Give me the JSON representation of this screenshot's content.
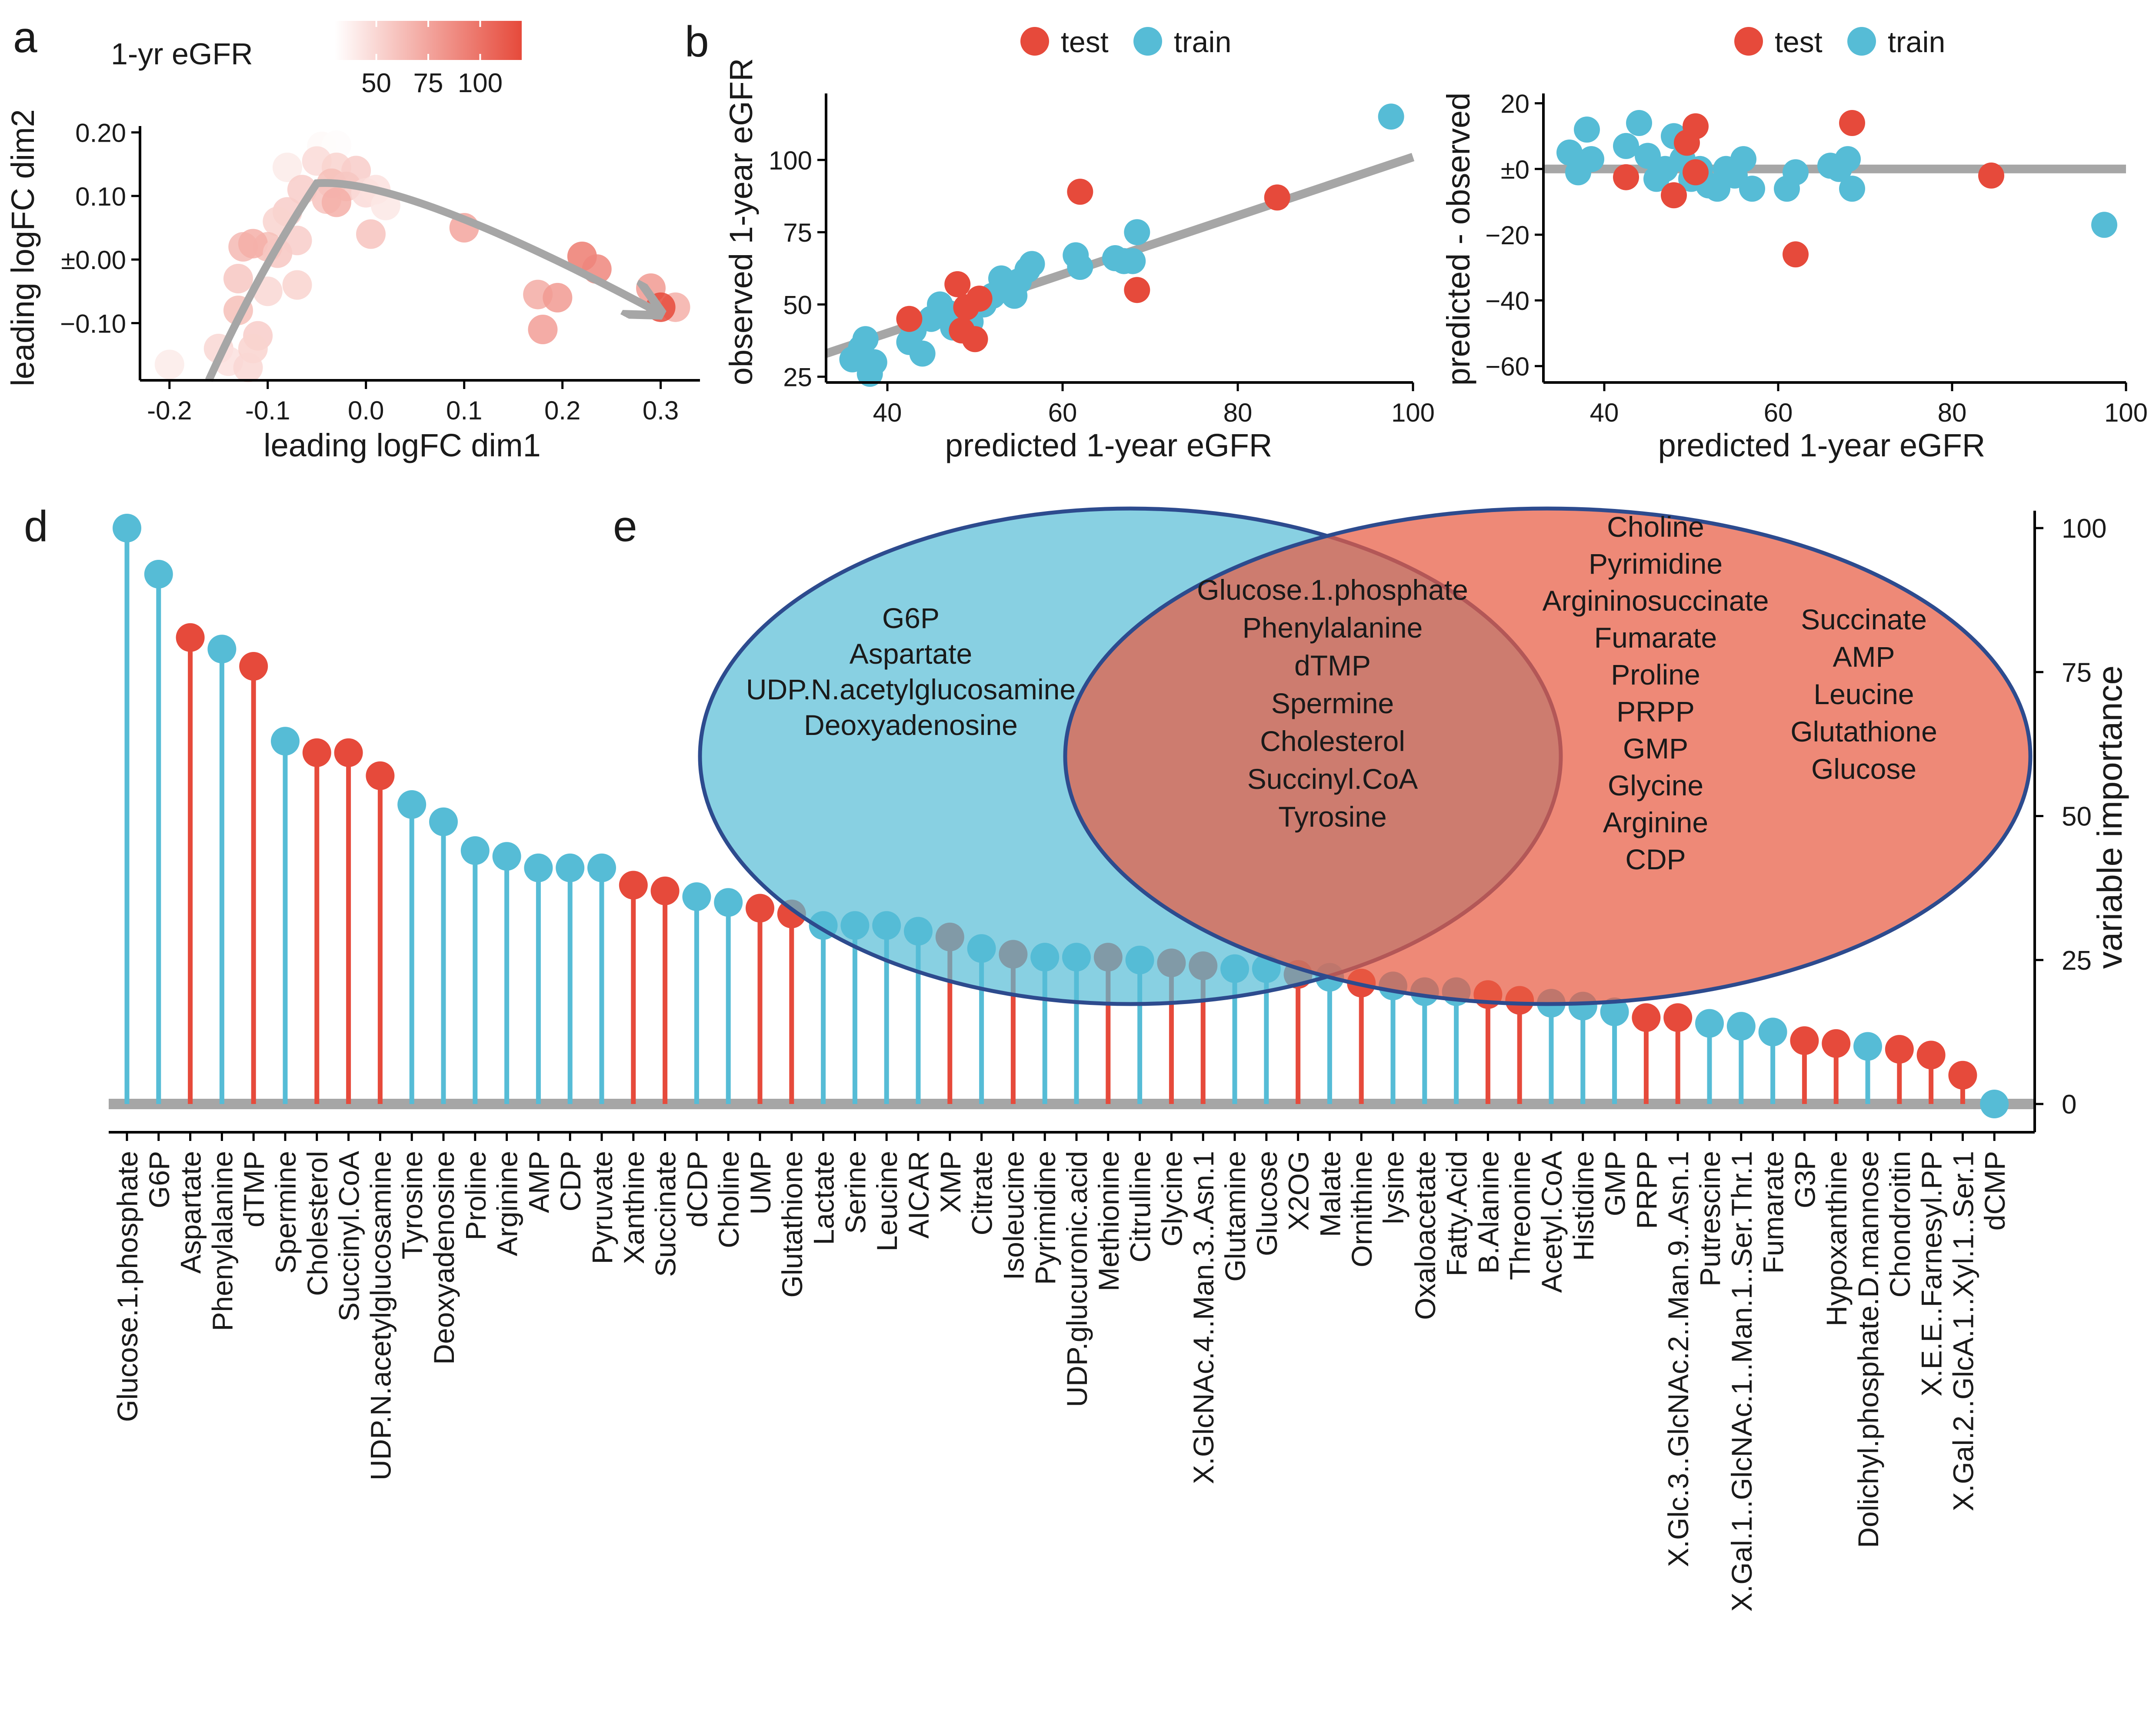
{
  "colors": {
    "test": "#E64A3B",
    "train": "#56BCD6",
    "line": "#A6A6A6",
    "axis": "#000000",
    "venn_left": "#56BCD6",
    "venn_right": "#EE6A50",
    "venn_edge": "#2D4B8E"
  },
  "panel_labels": {
    "a": "a",
    "b": "b",
    "d": "d",
    "e": "e"
  },
  "chart_data": [
    {
      "id": "panel-a",
      "type": "scatter",
      "xlabel": "leading logFC dim1",
      "ylabel": "leading logFC dim2",
      "xlim": [
        -0.23,
        0.34
      ],
      "ylim": [
        -0.19,
        0.21
      ],
      "xticks": [
        -0.2,
        -0.1,
        0.0,
        0.1,
        0.2,
        0.3
      ],
      "xtick_labels": [
        "-0.2",
        "-0.1",
        "0.0",
        "0.1",
        "0.2",
        "0.3"
      ],
      "yticks": [
        -0.1,
        0.0,
        0.1,
        0.2
      ],
      "ytick_labels": [
        "−0.10",
        "±0.00",
        "0.10",
        "0.20"
      ],
      "legend": {
        "title": "1-yr eGFR",
        "ticks": [
          "50",
          "75",
          "100"
        ],
        "range": [
          30,
          120
        ]
      },
      "points": [
        {
          "x": -0.045,
          "y": 0.178,
          "v": 33
        },
        {
          "x": -0.03,
          "y": 0.18,
          "v": 32
        },
        {
          "x": -0.05,
          "y": 0.155,
          "v": 48
        },
        {
          "x": -0.08,
          "y": 0.145,
          "v": 40
        },
        {
          "x": -0.03,
          "y": 0.145,
          "v": 52
        },
        {
          "x": -0.01,
          "y": 0.14,
          "v": 55
        },
        {
          "x": -0.035,
          "y": 0.12,
          "v": 62
        },
        {
          "x": -0.02,
          "y": 0.115,
          "v": 58
        },
        {
          "x": -0.065,
          "y": 0.11,
          "v": 55
        },
        {
          "x": -0.04,
          "y": 0.095,
          "v": 60
        },
        {
          "x": -0.03,
          "y": 0.09,
          "v": 70
        },
        {
          "x": 0.0,
          "y": 0.105,
          "v": 48
        },
        {
          "x": 0.01,
          "y": 0.11,
          "v": 45
        },
        {
          "x": 0.02,
          "y": 0.085,
          "v": 42
        },
        {
          "x": -0.08,
          "y": 0.075,
          "v": 55
        },
        {
          "x": -0.09,
          "y": 0.06,
          "v": 52
        },
        {
          "x": -0.1,
          "y": 0.02,
          "v": 62
        },
        {
          "x": -0.125,
          "y": 0.02,
          "v": 65
        },
        {
          "x": -0.115,
          "y": 0.025,
          "v": 70
        },
        {
          "x": -0.09,
          "y": 0.01,
          "v": 58
        },
        {
          "x": -0.07,
          "y": 0.03,
          "v": 55
        },
        {
          "x": -0.13,
          "y": -0.03,
          "v": 58
        },
        {
          "x": -0.1,
          "y": -0.05,
          "v": 50
        },
        {
          "x": -0.07,
          "y": -0.04,
          "v": 52
        },
        {
          "x": 0.005,
          "y": 0.04,
          "v": 60
        },
        {
          "x": 0.1,
          "y": 0.05,
          "v": 75
        },
        {
          "x": -0.13,
          "y": -0.08,
          "v": 62
        },
        {
          "x": -0.11,
          "y": -0.12,
          "v": 55
        },
        {
          "x": -0.15,
          "y": -0.14,
          "v": 50
        },
        {
          "x": -0.14,
          "y": -0.16,
          "v": 45
        },
        {
          "x": -0.115,
          "y": -0.14,
          "v": 52
        },
        {
          "x": -0.12,
          "y": -0.17,
          "v": 50
        },
        {
          "x": -0.2,
          "y": -0.165,
          "v": 40
        },
        {
          "x": 0.22,
          "y": 0.005,
          "v": 95
        },
        {
          "x": 0.235,
          "y": -0.015,
          "v": 90
        },
        {
          "x": 0.175,
          "y": -0.055,
          "v": 72
        },
        {
          "x": 0.195,
          "y": -0.06,
          "v": 80
        },
        {
          "x": 0.18,
          "y": -0.11,
          "v": 78
        },
        {
          "x": 0.29,
          "y": -0.045,
          "v": 80
        },
        {
          "x": 0.315,
          "y": -0.075,
          "v": 70
        },
        {
          "x": 0.3,
          "y": -0.075,
          "v": 122
        }
      ],
      "trend": [
        [
          -0.16,
          -0.19
        ],
        [
          -0.11,
          -0.02
        ],
        [
          -0.05,
          0.12
        ],
        [
          0.04,
          0.13
        ],
        [
          0.3,
          -0.085
        ]
      ]
    },
    {
      "id": "panel-b1",
      "type": "scatter",
      "xlabel": "predicted 1-year eGFR",
      "ylabel": "observed 1-year eGFR",
      "xlim": [
        33,
        100
      ],
      "ylim": [
        23,
        123
      ],
      "xticks": [
        40,
        60,
        80,
        100
      ],
      "xtick_labels": [
        "40",
        "60",
        "80",
        "100"
      ],
      "yticks": [
        25,
        50,
        75,
        100
      ],
      "ytick_labels": [
        "25",
        "50",
        "75",
        "100"
      ],
      "legend": [
        "test",
        "train"
      ],
      "line": [
        [
          33,
          33
        ],
        [
          100,
          101
        ]
      ],
      "test": [
        [
          42.5,
          45
        ],
        [
          48,
          57
        ],
        [
          48.5,
          41
        ],
        [
          50,
          38
        ],
        [
          49,
          49
        ],
        [
          50.5,
          52
        ],
        [
          62,
          89
        ],
        [
          68.5,
          55
        ],
        [
          84.5,
          87
        ]
      ],
      "train": [
        [
          36,
          31
        ],
        [
          37,
          35
        ],
        [
          37.5,
          38
        ],
        [
          38,
          26
        ],
        [
          38.5,
          30
        ],
        [
          42.5,
          37
        ],
        [
          43,
          41
        ],
        [
          44,
          33
        ],
        [
          45,
          45
        ],
        [
          46,
          50
        ],
        [
          47,
          47
        ],
        [
          47.5,
          42
        ],
        [
          49.5,
          44
        ],
        [
          51,
          50
        ],
        [
          52,
          53
        ],
        [
          53,
          59
        ],
        [
          53.5,
          56
        ],
        [
          54.5,
          53
        ],
        [
          55,
          58
        ],
        [
          56,
          62
        ],
        [
          56.5,
          64
        ],
        [
          61.5,
          67
        ],
        [
          62,
          63
        ],
        [
          66,
          66
        ],
        [
          67,
          65
        ],
        [
          68,
          65
        ],
        [
          68.5,
          75
        ],
        [
          97.5,
          115
        ]
      ]
    },
    {
      "id": "panel-b2",
      "type": "scatter",
      "xlabel": "predicted 1-year eGFR",
      "ylabel": "predicted - observed",
      "xlim": [
        33,
        100
      ],
      "ylim": [
        -65,
        23
      ],
      "xticks": [
        40,
        60,
        80,
        100
      ],
      "xtick_labels": [
        "40",
        "60",
        "80",
        "100"
      ],
      "yticks": [
        20,
        0,
        -20,
        -40,
        -60
      ],
      "ytick_labels": [
        "20",
        "±0",
        "−20",
        "−40",
        "−60"
      ],
      "legend": [
        "test",
        "train"
      ],
      "line": [
        [
          33,
          0
        ],
        [
          100,
          0
        ]
      ],
      "test": [
        [
          42.5,
          -2.5
        ],
        [
          48,
          -8
        ],
        [
          49.5,
          8
        ],
        [
          50.5,
          13
        ],
        [
          50.5,
          -1
        ],
        [
          62,
          -26
        ],
        [
          68.5,
          14
        ],
        [
          84.5,
          -2
        ]
      ],
      "train": [
        [
          36,
          5
        ],
        [
          37,
          -1
        ],
        [
          38,
          12
        ],
        [
          38.5,
          3
        ],
        [
          42.5,
          7
        ],
        [
          44,
          14
        ],
        [
          45,
          4
        ],
        [
          46,
          -3
        ],
        [
          47,
          0
        ],
        [
          48,
          10
        ],
        [
          49,
          3
        ],
        [
          50,
          -3
        ],
        [
          51,
          0
        ],
        [
          52,
          -5
        ],
        [
          53,
          -6
        ],
        [
          54,
          0
        ],
        [
          55,
          -2
        ],
        [
          56,
          3
        ],
        [
          57,
          -6
        ],
        [
          61,
          -6
        ],
        [
          62,
          -1
        ],
        [
          66,
          1
        ],
        [
          67,
          0
        ],
        [
          68,
          3
        ],
        [
          68.5,
          -6
        ],
        [
          97.5,
          -17
        ]
      ]
    },
    {
      "id": "panel-d",
      "type": "lollipop",
      "ylabel": "variable importance",
      "ylim": [
        0,
        100
      ],
      "yticks": [
        0,
        25,
        50,
        75,
        100
      ],
      "ytick_labels": [
        "0",
        "25",
        "50",
        "75",
        "100"
      ],
      "categories": [
        "Glucose.1.phosphate",
        "G6P",
        "Aspartate",
        "Phenylalanine",
        "dTMP",
        "Spermine",
        "Cholesterol",
        "Succinyl.CoA",
        "UDP.N.acetylglucosamine",
        "Tyrosine",
        "Deoxyadenosine",
        "Proline",
        "Arginine",
        "AMP",
        "CDP",
        "Pyruvate",
        "Xanthine",
        "Succinate",
        "dCDP",
        "Choline",
        "UMP",
        "Glutathione",
        "Lactate",
        "Serine",
        "Leucine",
        "AICAR",
        "XMP",
        "Citrate",
        "Isoleucine",
        "Pyrimidine",
        "UDP.glucuronic.acid",
        "Methionine",
        "Citrulline",
        "Glycine",
        "X.GlcNAc.4..Man.3..Asn.1",
        "Glutamine",
        "Glucose",
        "X2OG",
        "Malate",
        "Ornithine",
        "lysine",
        "Oxaloacetate",
        "Fatty.Acid",
        "B.Alanine",
        "Threonine",
        "Acetyl.CoA",
        "Histidine",
        "GMP",
        "PRPP",
        "X.Glc.3..GlcNAc.2..Man.9..Asn.1",
        "Putrescine",
        "X.Gal.1..GlcNAc.1..Man.1..Ser.Thr.1",
        "Fumarate",
        "G3P",
        "Hypoxanthine",
        "Dolichyl.phosphate.D.mannose",
        "Chondroitin",
        "X.E.E..Farnesyl.PP",
        "X.Gal.2..GlcA.1..Xyl.1..Ser.1",
        "dCMP"
      ],
      "values": [
        100,
        92,
        81,
        79,
        76,
        63,
        61,
        61,
        57,
        52,
        49,
        44,
        43,
        41,
        41,
        41,
        38,
        37,
        36,
        35,
        34,
        33,
        31,
        31,
        31,
        30,
        29,
        27,
        26,
        25.5,
        25.5,
        25.5,
        25,
        24.5,
        24,
        23.5,
        23.5,
        22.5,
        22,
        21,
        20.5,
        19.5,
        19.5,
        19,
        18,
        17.5,
        17,
        16,
        15,
        15,
        14,
        13.5,
        12.5,
        11,
        10.5,
        10,
        9.5,
        8.5,
        5,
        0
      ],
      "groups": [
        "train",
        "train",
        "test",
        "train",
        "test",
        "train",
        "test",
        "test",
        "test",
        "train",
        "train",
        "train",
        "train",
        "train",
        "train",
        "train",
        "test",
        "test",
        "train",
        "train",
        "test",
        "test",
        "train",
        "train",
        "train",
        "train",
        "test",
        "train",
        "test",
        "train",
        "train",
        "test",
        "train",
        "test",
        "test",
        "train",
        "train",
        "test",
        "train",
        "test",
        "train",
        "train",
        "train",
        "test",
        "test",
        "train",
        "train",
        "train",
        "test",
        "test",
        "train",
        "train",
        "train",
        "test",
        "test",
        "train",
        "test",
        "test",
        "test",
        "train"
      ]
    }
  ],
  "venn": {
    "left_only": [
      "G6P",
      "Aspartate",
      "UDP.N.acetylglucosamine",
      "Deoxyadenosine"
    ],
    "both": [
      "Glucose.1.phosphate",
      "Phenylalanine",
      "dTMP",
      "Spermine",
      "Cholesterol",
      "Succinyl.CoA",
      "Tyrosine"
    ],
    "right_col1": [
      "Choline",
      "Pyrimidine",
      "Argininosuccinate",
      "Fumarate",
      "Proline",
      "PRPP",
      "GMP",
      "Glycine",
      "Arginine",
      "CDP"
    ],
    "right_col2": [
      "Succinate",
      "AMP",
      "Leucine",
      "Glutathione",
      "Glucose"
    ]
  }
}
